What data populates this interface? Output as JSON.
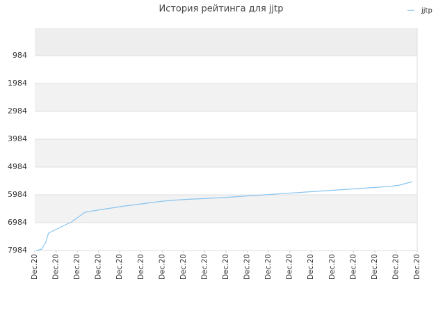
{
  "chart_data": {
    "type": "line",
    "title": "История рейтинга для jjtp",
    "y_inverted": true,
    "ylim": [
      -16,
      7984
    ],
    "yticks": [
      984,
      1984,
      2984,
      3984,
      4984,
      5984,
      6984,
      7984
    ],
    "xlim": [
      0,
      18
    ],
    "xticks": [
      {
        "value": 0,
        "label": "Dec.20"
      },
      {
        "value": 1,
        "label": "Dec.20"
      },
      {
        "value": 2,
        "label": "Dec.20"
      },
      {
        "value": 3,
        "label": "Dec.20"
      },
      {
        "value": 4,
        "label": "Dec.20"
      },
      {
        "value": 5,
        "label": "Dec.20"
      },
      {
        "value": 6,
        "label": "Dec.20"
      },
      {
        "value": 7,
        "label": "Dec.20"
      },
      {
        "value": 8,
        "label": "Dec.20"
      },
      {
        "value": 9,
        "label": "Dec.20"
      },
      {
        "value": 10,
        "label": "Dec.20"
      },
      {
        "value": 11,
        "label": "Dec.20"
      },
      {
        "value": 12,
        "label": "Dec.20"
      },
      {
        "value": 13,
        "label": "Dec.20"
      },
      {
        "value": 14,
        "label": "Dec.20"
      },
      {
        "value": 15,
        "label": "Dec.20"
      },
      {
        "value": 16,
        "label": "Dec.20"
      },
      {
        "value": 17,
        "label": "Dec.20"
      },
      {
        "value": 18,
        "label": "Dec.20"
      }
    ],
    "x": [
      0.07,
      0.33,
      0.52,
      0.65,
      0.98,
      1.31,
      1.73,
      1.96,
      2.36,
      2.95,
      4.25,
      6.05,
      6.87,
      8.84,
      10.8,
      12.76,
      14.73,
      16.69,
      17.18,
      17.77
    ],
    "series": [
      {
        "name": "jjtp",
        "color": "#88c4f0",
        "values": [
          7984,
          7934,
          7684,
          7359,
          7234,
          7109,
          6959,
          6834,
          6609,
          6534,
          6384,
          6209,
          6159,
          6084,
          5984,
          5884,
          5784,
          5684,
          5634,
          5509
        ]
      }
    ],
    "legend": "top-right",
    "grid": true
  }
}
